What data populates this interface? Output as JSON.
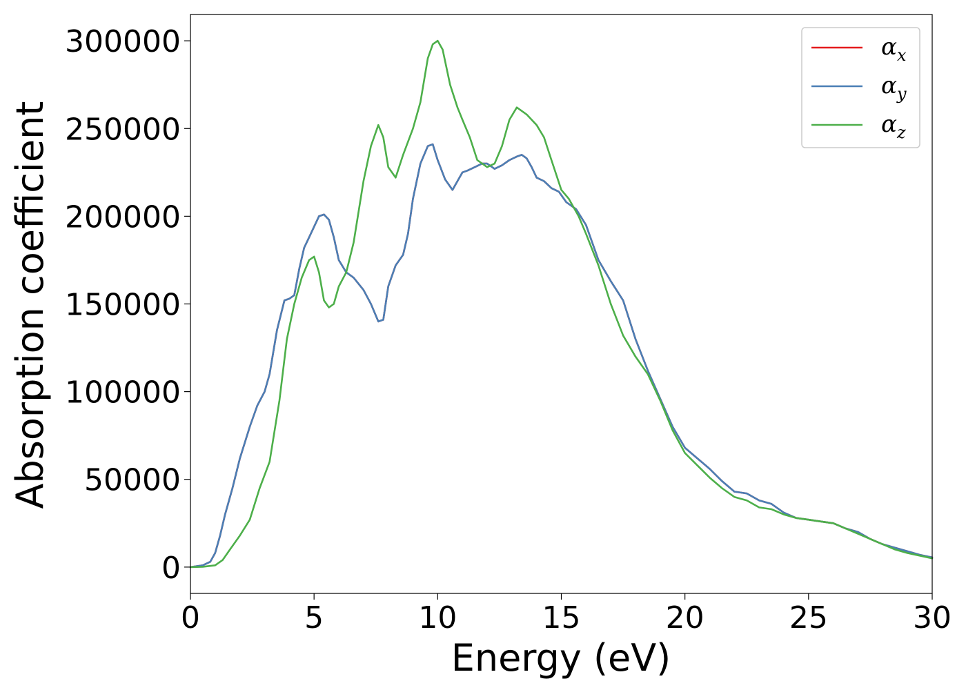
{
  "chart_data": {
    "type": "line",
    "xlabel": "Energy (eV)",
    "ylabel": "Absorption coefficient",
    "xlim": [
      0,
      30
    ],
    "ylim": [
      -15000,
      315000
    ],
    "xticks": [
      0,
      5,
      10,
      15,
      20,
      25,
      30
    ],
    "yticks": [
      0,
      50000,
      100000,
      150000,
      200000,
      250000,
      300000
    ],
    "grid": false,
    "legend_position": "top-right",
    "series": [
      {
        "name": "αx",
        "label_base": "α",
        "label_sub": "x",
        "color": "#e41a1c",
        "x": [
          0,
          0.5,
          0.8,
          1.0,
          1.2,
          1.4,
          1.7,
          2.0,
          2.4,
          2.7,
          3.0,
          3.2,
          3.5,
          3.8,
          4.0,
          4.2,
          4.4,
          4.6,
          4.8,
          5.0,
          5.2,
          5.4,
          5.6,
          5.8,
          6.0,
          6.3,
          6.6,
          7.0,
          7.3,
          7.6,
          7.8,
          8.0,
          8.3,
          8.6,
          8.8,
          9.0,
          9.3,
          9.6,
          9.8,
          10.0,
          10.3,
          10.6,
          10.8,
          11.0,
          11.2,
          11.5,
          11.8,
          12.0,
          12.3,
          12.6,
          12.9,
          13.2,
          13.4,
          13.6,
          13.8,
          14.0,
          14.3,
          14.6,
          14.9,
          15.2,
          15.6,
          16.0,
          16.5,
          17.0,
          17.5,
          18.0,
          18.5,
          19.0,
          19.5,
          20.0,
          20.5,
          21.0,
          21.5,
          22.0,
          22.5,
          23.0,
          23.5,
          24.0,
          24.5,
          25.0,
          25.5,
          26.0,
          26.5,
          27.0,
          27.5,
          28.0,
          28.5,
          29.0,
          29.5,
          30.0
        ],
        "values": [
          0,
          1000,
          3000,
          8000,
          18000,
          30000,
          45000,
          62000,
          80000,
          92000,
          100000,
          110000,
          135000,
          152000,
          153000,
          155000,
          170000,
          182000,
          188000,
          194000,
          200000,
          201000,
          198000,
          188000,
          175000,
          168000,
          165000,
          158000,
          150000,
          140000,
          141000,
          160000,
          172000,
          178000,
          190000,
          210000,
          230000,
          240000,
          241000,
          232000,
          221000,
          215000,
          220000,
          225000,
          226000,
          228000,
          230000,
          230000,
          227000,
          229000,
          232000,
          234000,
          235000,
          233000,
          228000,
          222000,
          220000,
          216000,
          214000,
          208000,
          204000,
          195000,
          175000,
          163000,
          152000,
          130000,
          112000,
          96000,
          80000,
          68000,
          62000,
          56000,
          49000,
          43000,
          42000,
          38000,
          36000,
          31000,
          28000,
          27000,
          26000,
          25000,
          22000,
          20000,
          16000,
          13000,
          11000,
          9000,
          7000,
          5500
        ]
      },
      {
        "name": "αy",
        "label_base": "α",
        "label_sub": "y",
        "color": "#4a7fb5",
        "x": [
          0,
          0.5,
          0.8,
          1.0,
          1.2,
          1.4,
          1.7,
          2.0,
          2.4,
          2.7,
          3.0,
          3.2,
          3.5,
          3.8,
          4.0,
          4.2,
          4.4,
          4.6,
          4.8,
          5.0,
          5.2,
          5.4,
          5.6,
          5.8,
          6.0,
          6.3,
          6.6,
          7.0,
          7.3,
          7.6,
          7.8,
          8.0,
          8.3,
          8.6,
          8.8,
          9.0,
          9.3,
          9.6,
          9.8,
          10.0,
          10.3,
          10.6,
          10.8,
          11.0,
          11.2,
          11.5,
          11.8,
          12.0,
          12.3,
          12.6,
          12.9,
          13.2,
          13.4,
          13.6,
          13.8,
          14.0,
          14.3,
          14.6,
          14.9,
          15.2,
          15.6,
          16.0,
          16.5,
          17.0,
          17.5,
          18.0,
          18.5,
          19.0,
          19.5,
          20.0,
          20.5,
          21.0,
          21.5,
          22.0,
          22.5,
          23.0,
          23.5,
          24.0,
          24.5,
          25.0,
          25.5,
          26.0,
          26.5,
          27.0,
          27.5,
          28.0,
          28.5,
          29.0,
          29.5,
          30.0
        ],
        "values": [
          0,
          1000,
          3000,
          8000,
          18000,
          30000,
          45000,
          62000,
          80000,
          92000,
          100000,
          110000,
          135000,
          152000,
          153000,
          155000,
          170000,
          182000,
          188000,
          194000,
          200000,
          201000,
          198000,
          188000,
          175000,
          168000,
          165000,
          158000,
          150000,
          140000,
          141000,
          160000,
          172000,
          178000,
          190000,
          210000,
          230000,
          240000,
          241000,
          232000,
          221000,
          215000,
          220000,
          225000,
          226000,
          228000,
          230000,
          230000,
          227000,
          229000,
          232000,
          234000,
          235000,
          233000,
          228000,
          222000,
          220000,
          216000,
          214000,
          208000,
          204000,
          195000,
          175000,
          163000,
          152000,
          130000,
          112000,
          96000,
          80000,
          68000,
          62000,
          56000,
          49000,
          43000,
          42000,
          38000,
          36000,
          31000,
          28000,
          27000,
          26000,
          25000,
          22000,
          20000,
          16000,
          13000,
          11000,
          9000,
          7000,
          5500
        ]
      },
      {
        "name": "αz",
        "label_base": "α",
        "label_sub": "z",
        "color": "#4daf4a",
        "x": [
          0,
          0.5,
          1.0,
          1.3,
          1.6,
          2.0,
          2.4,
          2.8,
          3.2,
          3.6,
          3.9,
          4.2,
          4.5,
          4.8,
          5.0,
          5.2,
          5.4,
          5.6,
          5.8,
          6.0,
          6.3,
          6.6,
          7.0,
          7.3,
          7.6,
          7.8,
          8.0,
          8.3,
          8.6,
          9.0,
          9.3,
          9.6,
          9.8,
          10.0,
          10.2,
          10.5,
          10.8,
          11.0,
          11.3,
          11.6,
          12.0,
          12.3,
          12.6,
          12.9,
          13.2,
          13.4,
          13.6,
          14.0,
          14.3,
          14.6,
          15.0,
          15.3,
          15.7,
          16.0,
          16.5,
          17.0,
          17.5,
          18.0,
          18.5,
          19.0,
          19.5,
          20.0,
          20.5,
          21.0,
          21.5,
          22.0,
          22.5,
          23.0,
          23.5,
          24.0,
          24.5,
          25.0,
          25.5,
          26.0,
          26.5,
          27.0,
          27.5,
          28.0,
          28.5,
          29.0,
          29.5,
          30.0
        ],
        "values": [
          0,
          200,
          1000,
          4000,
          10000,
          18000,
          27000,
          45000,
          60000,
          95000,
          130000,
          150000,
          165000,
          175000,
          177000,
          168000,
          152000,
          148000,
          150000,
          160000,
          168000,
          185000,
          220000,
          240000,
          252000,
          245000,
          228000,
          222000,
          235000,
          250000,
          265000,
          290000,
          298000,
          300000,
          295000,
          275000,
          262000,
          255000,
          245000,
          232000,
          228000,
          230000,
          240000,
          255000,
          262000,
          260000,
          258000,
          252000,
          245000,
          232000,
          215000,
          210000,
          200000,
          190000,
          172000,
          150000,
          132000,
          120000,
          110000,
          95000,
          78000,
          65000,
          58000,
          51000,
          45000,
          40000,
          38000,
          34000,
          33000,
          30000,
          28000,
          27000,
          26000,
          25000,
          22000,
          19000,
          16000,
          13000,
          10000,
          8000,
          6500,
          5000
        ]
      }
    ]
  }
}
